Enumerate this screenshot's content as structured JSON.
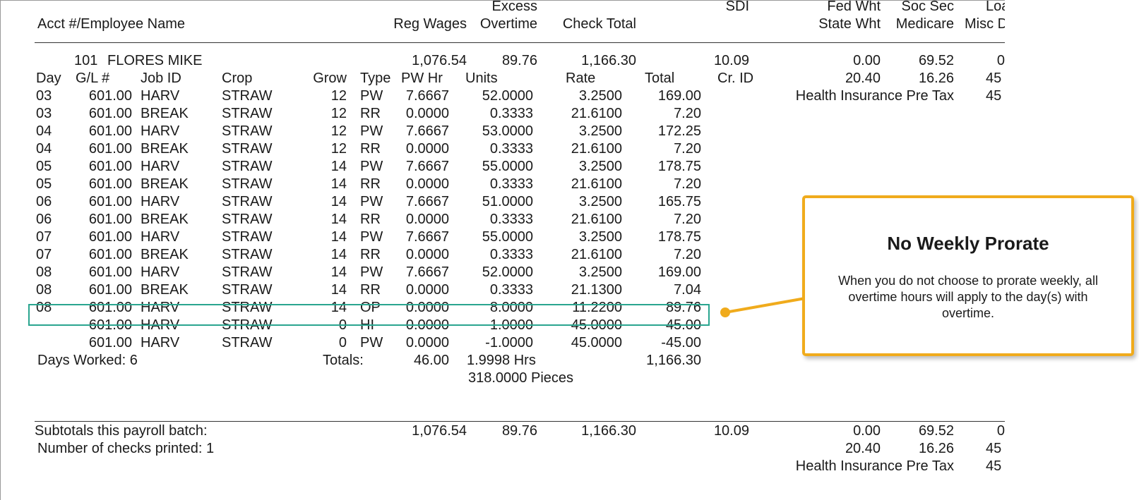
{
  "header": {
    "col1": "Acct #/Employee Name",
    "reg_wages": "Reg Wages",
    "excess": "Excess",
    "overtime": "Overtime",
    "check_total": "Check Total",
    "sdi": "SDI",
    "fed_wht": "Fed Wht",
    "state_wht": "State Wht",
    "soc_sec": "Soc Sec",
    "medicare": "Medicare",
    "loan": "Loa",
    "misc": "Misc D"
  },
  "employee": {
    "acct": "101",
    "name": "FLORES MIKE",
    "reg_wages": "1,076.54",
    "overtime": "89.76",
    "check_total": "1,166.30",
    "sdi": "10.09",
    "fed_wht": "0.00",
    "soc_sec": "69.52",
    "loan": "0",
    "state_wht": "20.40",
    "medicare": "16.26",
    "misc": "45",
    "deduction_label": "Health Insurance Pre Tax",
    "deduction_amount": "45"
  },
  "detail_headers": {
    "day": "Day",
    "gl": "G/L #",
    "job": "Job ID",
    "crop": "Crop",
    "grow": "Grow",
    "type": "Type",
    "pwhr": "PW Hr",
    "units": "Units",
    "rate": "Rate",
    "total": "Total",
    "crid": "Cr. ID"
  },
  "rows": [
    {
      "day": "03",
      "gl": "601.00",
      "job": "HARV",
      "crop": "STRAW",
      "grow": "12",
      "type": "PW",
      "pwhr": "7.6667",
      "units": "52.0000",
      "rate": "3.2500",
      "total": "169.00"
    },
    {
      "day": "03",
      "gl": "601.00",
      "job": "BREAK",
      "crop": "STRAW",
      "grow": "12",
      "type": "RR",
      "pwhr": "0.0000",
      "units": "0.3333",
      "rate": "21.6100",
      "total": "7.20"
    },
    {
      "day": "04",
      "gl": "601.00",
      "job": "HARV",
      "crop": "STRAW",
      "grow": "12",
      "type": "PW",
      "pwhr": "7.6667",
      "units": "53.0000",
      "rate": "3.2500",
      "total": "172.25"
    },
    {
      "day": "04",
      "gl": "601.00",
      "job": "BREAK",
      "crop": "STRAW",
      "grow": "12",
      "type": "RR",
      "pwhr": "0.0000",
      "units": "0.3333",
      "rate": "21.6100",
      "total": "7.20"
    },
    {
      "day": "05",
      "gl": "601.00",
      "job": "HARV",
      "crop": "STRAW",
      "grow": "14",
      "type": "PW",
      "pwhr": "7.6667",
      "units": "55.0000",
      "rate": "3.2500",
      "total": "178.75"
    },
    {
      "day": "05",
      "gl": "601.00",
      "job": "BREAK",
      "crop": "STRAW",
      "grow": "14",
      "type": "RR",
      "pwhr": "0.0000",
      "units": "0.3333",
      "rate": "21.6100",
      "total": "7.20"
    },
    {
      "day": "06",
      "gl": "601.00",
      "job": "HARV",
      "crop": "STRAW",
      "grow": "14",
      "type": "PW",
      "pwhr": "7.6667",
      "units": "51.0000",
      "rate": "3.2500",
      "total": "165.75"
    },
    {
      "day": "06",
      "gl": "601.00",
      "job": "BREAK",
      "crop": "STRAW",
      "grow": "14",
      "type": "RR",
      "pwhr": "0.0000",
      "units": "0.3333",
      "rate": "21.6100",
      "total": "7.20"
    },
    {
      "day": "07",
      "gl": "601.00",
      "job": "HARV",
      "crop": "STRAW",
      "grow": "14",
      "type": "PW",
      "pwhr": "7.6667",
      "units": "55.0000",
      "rate": "3.2500",
      "total": "178.75"
    },
    {
      "day": "07",
      "gl": "601.00",
      "job": "BREAK",
      "crop": "STRAW",
      "grow": "14",
      "type": "RR",
      "pwhr": "0.0000",
      "units": "0.3333",
      "rate": "21.6100",
      "total": "7.20"
    },
    {
      "day": "08",
      "gl": "601.00",
      "job": "HARV",
      "crop": "STRAW",
      "grow": "14",
      "type": "PW",
      "pwhr": "7.6667",
      "units": "52.0000",
      "rate": "3.2500",
      "total": "169.00"
    },
    {
      "day": "08",
      "gl": "601.00",
      "job": "BREAK",
      "crop": "STRAW",
      "grow": "14",
      "type": "RR",
      "pwhr": "0.0000",
      "units": "0.3333",
      "rate": "21.1300",
      "total": "7.04"
    },
    {
      "day": "08",
      "gl": "601.00",
      "job": "HARV",
      "crop": "STRAW",
      "grow": "14",
      "type": "OP",
      "pwhr": "0.0000",
      "units": "8.0000",
      "rate": "11.2200",
      "total": "89.76"
    },
    {
      "day": "",
      "gl": "601.00",
      "job": "HARV",
      "crop": "STRAW",
      "grow": "0",
      "type": "HI",
      "pwhr": "0.0000",
      "units": "1.0000",
      "rate": "45.0000",
      "total": "45.00"
    },
    {
      "day": "",
      "gl": "601.00",
      "job": "HARV",
      "crop": "STRAW",
      "grow": "0",
      "type": "PW",
      "pwhr": "0.0000",
      "units": "-1.0000",
      "rate": "45.0000",
      "total": "-45.00"
    }
  ],
  "summary": {
    "days_worked": "Days Worked: 6",
    "totals_label": "Totals:",
    "totals_pwhr": "46.00",
    "totals_hrs": "1.9998 Hrs",
    "totals_pieces": "318.0000 Pieces",
    "totals_total": "1,166.30"
  },
  "subtotals": {
    "label": "Subtotals this payroll batch:",
    "reg_wages": "1,076.54",
    "overtime": "89.76",
    "check_total": "1,166.30",
    "sdi": "10.09",
    "fed_wht": "0.00",
    "soc_sec": "69.52",
    "loan": "0",
    "checks_printed": "Number of checks printed: 1",
    "state_wht": "20.40",
    "medicare": "16.26",
    "misc": "45",
    "deduction_label": "Health Insurance Pre Tax",
    "deduction_amount": "45"
  },
  "callout": {
    "title": "No Weekly Prorate",
    "body": "When you do not choose to prorate weekly, all overtime hours will apply to the day(s) with overtime."
  },
  "colors": {
    "highlight": "#2aa58f",
    "callout_border": "#f0ab1c"
  }
}
